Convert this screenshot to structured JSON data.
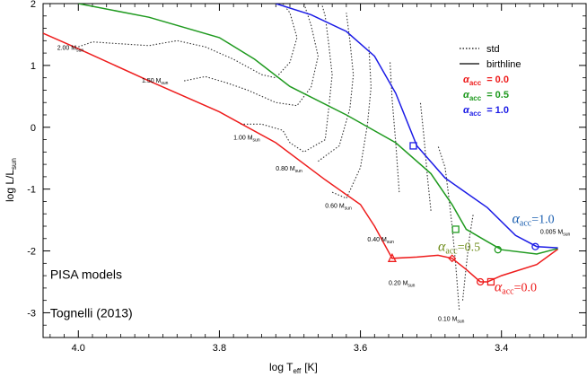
{
  "chart_data": {
    "type": "line",
    "title": "",
    "xlabel_main": "log T",
    "xlabel_sub": "eff",
    "xlabel_unit": "[K]",
    "ylabel_main": "log L/L",
    "ylabel_sub": "sun",
    "xlim": [
      4.05,
      3.28
    ],
    "ylim": [
      -3.4,
      2.0
    ],
    "x_ticks": [
      4.0,
      3.8,
      3.6,
      3.4
    ],
    "y_ticks": [
      -3,
      -2,
      -1,
      0,
      1,
      2
    ],
    "x_tick_labels": [
      "4.0",
      "3.8",
      "3.6",
      "3.4"
    ],
    "y_tick_labels": [
      "-3",
      "-2",
      "-1",
      "0",
      "1",
      "2"
    ],
    "legend": {
      "position": "top-right",
      "entries": [
        {
          "label": "std",
          "style": "dotted",
          "color": "#000000"
        },
        {
          "label": "birthline",
          "style": "solid",
          "color": "#000000"
        },
        {
          "label": "α_acc = 0.0",
          "color": "#ee1c1c",
          "alpha_text": "0.0"
        },
        {
          "label": "α_acc = 0.5",
          "color": "#1f9a1f",
          "alpha_text": "0.5"
        },
        {
          "label": "α_acc = 1.0",
          "color": "#1b1be6",
          "alpha_text": "1.0"
        }
      ]
    },
    "series": [
      {
        "name": "α_acc = 0.0",
        "color": "#ee1c1c",
        "style": "solid",
        "points": [
          [
            4.05,
            1.52
          ],
          [
            4.0,
            1.27
          ],
          [
            3.9,
            0.75
          ],
          [
            3.8,
            0.25
          ],
          [
            3.72,
            -0.25
          ],
          [
            3.65,
            -0.85
          ],
          [
            3.6,
            -1.25
          ],
          [
            3.58,
            -1.6
          ],
          [
            3.555,
            -2.12
          ],
          [
            3.52,
            -2.1
          ],
          [
            3.49,
            -2.07
          ],
          [
            3.47,
            -2.12
          ],
          [
            3.45,
            -2.3
          ],
          [
            3.43,
            -2.5
          ],
          [
            3.42,
            -2.5
          ],
          [
            3.4,
            -2.4
          ],
          [
            3.35,
            -2.22
          ],
          [
            3.32,
            -1.97
          ]
        ],
        "markers": [
          {
            "x": 3.555,
            "y": -2.12,
            "shape": "triangle"
          },
          {
            "x": 3.47,
            "y": -2.12,
            "shape": "diamond"
          },
          {
            "x": 3.43,
            "y": -2.5,
            "shape": "circle"
          },
          {
            "x": 3.415,
            "y": -2.5,
            "shape": "square"
          }
        ]
      },
      {
        "name": "α_acc = 0.5",
        "color": "#1f9a1f",
        "style": "solid",
        "points": [
          [
            4.0,
            2.0
          ],
          [
            3.9,
            1.78
          ],
          [
            3.8,
            1.45
          ],
          [
            3.75,
            1.1
          ],
          [
            3.7,
            0.66
          ],
          [
            3.62,
            0.2
          ],
          [
            3.55,
            -0.25
          ],
          [
            3.5,
            -0.75
          ],
          [
            3.47,
            -1.25
          ],
          [
            3.45,
            -1.65
          ],
          [
            3.42,
            -1.85
          ],
          [
            3.4,
            -1.98
          ],
          [
            3.35,
            -2.05
          ],
          [
            3.32,
            -1.96
          ]
        ],
        "markers": [
          {
            "x": 3.465,
            "y": -1.65,
            "shape": "square"
          },
          {
            "x": 3.405,
            "y": -1.98,
            "shape": "circle"
          }
        ]
      },
      {
        "name": "α_acc = 1.0",
        "color": "#1b1be6",
        "style": "solid",
        "points": [
          [
            3.72,
            2.0
          ],
          [
            3.67,
            1.82
          ],
          [
            3.62,
            1.55
          ],
          [
            3.58,
            1.15
          ],
          [
            3.55,
            0.55
          ],
          [
            3.52,
            -0.3
          ],
          [
            3.48,
            -0.82
          ],
          [
            3.42,
            -1.3
          ],
          [
            3.38,
            -1.75
          ],
          [
            3.35,
            -1.93
          ],
          [
            3.32,
            -1.95
          ]
        ],
        "markers": [
          {
            "x": 3.525,
            "y": -0.3,
            "shape": "square"
          },
          {
            "x": 3.352,
            "y": -1.93,
            "shape": "circle"
          }
        ]
      }
    ],
    "std_tracks": [
      {
        "mass": "2.00",
        "points": [
          [
            4.0,
            1.3
          ],
          [
            3.98,
            1.38
          ],
          [
            3.94,
            1.35
          ],
          [
            3.9,
            1.32
          ],
          [
            3.86,
            1.4
          ],
          [
            3.82,
            1.3
          ],
          [
            3.78,
            1.1
          ],
          [
            3.74,
            0.85
          ],
          [
            3.72,
            0.8
          ],
          [
            3.7,
            1.05
          ],
          [
            3.69,
            1.45
          ],
          [
            3.7,
            1.85
          ],
          [
            3.71,
            2.0
          ]
        ]
      },
      {
        "mass": "1.50",
        "points": [
          [
            3.85,
            0.75
          ],
          [
            3.82,
            0.82
          ],
          [
            3.79,
            0.72
          ],
          [
            3.76,
            0.6
          ],
          [
            3.72,
            0.4
          ],
          [
            3.69,
            0.35
          ],
          [
            3.67,
            0.65
          ],
          [
            3.66,
            1.15
          ],
          [
            3.67,
            1.65
          ],
          [
            3.68,
            2.0
          ]
        ]
      },
      {
        "mass": "1.00",
        "points": [
          [
            3.77,
            0.05
          ],
          [
            3.74,
            0.05
          ],
          [
            3.71,
            -0.05
          ],
          [
            3.7,
            -0.25
          ],
          [
            3.68,
            -0.4
          ],
          [
            3.65,
            -0.2
          ],
          [
            3.645,
            0.3
          ],
          [
            3.64,
            0.85
          ],
          [
            3.645,
            1.35
          ],
          [
            3.65,
            1.8
          ],
          [
            3.655,
            2.0
          ]
        ]
      },
      {
        "mass": "0.80",
        "points": [
          [
            3.66,
            -0.55
          ],
          [
            3.63,
            -0.3
          ],
          [
            3.615,
            0.3
          ],
          [
            3.61,
            0.85
          ],
          [
            3.615,
            1.4
          ],
          [
            3.62,
            1.85
          ]
        ]
      },
      {
        "mass": "0.60",
        "points": [
          [
            3.64,
            -1.05
          ],
          [
            3.62,
            -1.15
          ],
          [
            3.6,
            -0.65
          ],
          [
            3.59,
            0.05
          ],
          [
            3.585,
            0.65
          ],
          [
            3.588,
            1.3
          ]
        ]
      },
      {
        "mass": "0.40",
        "points": [
          [
            3.545,
            -1.05
          ],
          [
            3.55,
            -0.25
          ],
          [
            3.555,
            0.45
          ],
          [
            3.558,
            1.05
          ]
        ]
      },
      {
        "mass": "0.20",
        "points": [
          [
            3.5,
            -1.35
          ],
          [
            3.505,
            -0.8
          ],
          [
            3.51,
            -0.15
          ],
          [
            3.515,
            0.4
          ]
        ]
      },
      {
        "mass": "0.10",
        "points": [
          [
            3.46,
            -2.95
          ],
          [
            3.465,
            -2.2
          ],
          [
            3.47,
            -1.6
          ],
          [
            3.475,
            -1.1
          ],
          [
            3.48,
            -0.65
          ],
          [
            3.49,
            -0.3
          ]
        ]
      },
      {
        "mass": "0.005",
        "points": [
          [
            3.455,
            -2.8
          ],
          [
            3.45,
            -2.25
          ],
          [
            3.445,
            -1.75
          ],
          [
            3.44,
            -1.4
          ]
        ]
      }
    ],
    "mass_labels": [
      {
        "text": "2.00 M",
        "x": 4.03,
        "y": 1.25
      },
      {
        "text": "1.50 M",
        "x": 3.91,
        "y": 0.72
      },
      {
        "text": "1.00 M",
        "x": 3.78,
        "y": -0.2
      },
      {
        "text": "0.80 M",
        "x": 3.72,
        "y": -0.7
      },
      {
        "text": "0.60 M",
        "x": 3.65,
        "y": -1.3
      },
      {
        "text": "0.40 M",
        "x": 3.59,
        "y": -1.85
      },
      {
        "text": "0.20 M",
        "x": 3.56,
        "y": -2.55
      },
      {
        "text": "0.10 M",
        "x": 3.49,
        "y": -3.13
      },
      {
        "text": "0.005 M",
        "x": 3.345,
        "y": -1.72
      }
    ],
    "mass_sub": "sun",
    "annotations": [
      {
        "text": "PISA models",
        "x": 4.04,
        "y": -2.45,
        "color": "#000000"
      },
      {
        "text": "Tognelli (2013)",
        "x": 4.04,
        "y": -3.07,
        "color": "#000000"
      }
    ],
    "curve_annotations": [
      {
        "greek": "α",
        "sub": "acc",
        "value": "=1.0",
        "color": "#1b5fb0",
        "x": 3.385,
        "y": -1.55
      },
      {
        "greek": "α",
        "sub": "acc",
        "value": "=0.5",
        "color": "#6e8c1a",
        "x": 3.49,
        "y": -2.0
      },
      {
        "greek": "α",
        "sub": "acc",
        "value": "=0.0",
        "color": "#ee1c1c",
        "x": 3.41,
        "y": -2.65
      }
    ]
  }
}
